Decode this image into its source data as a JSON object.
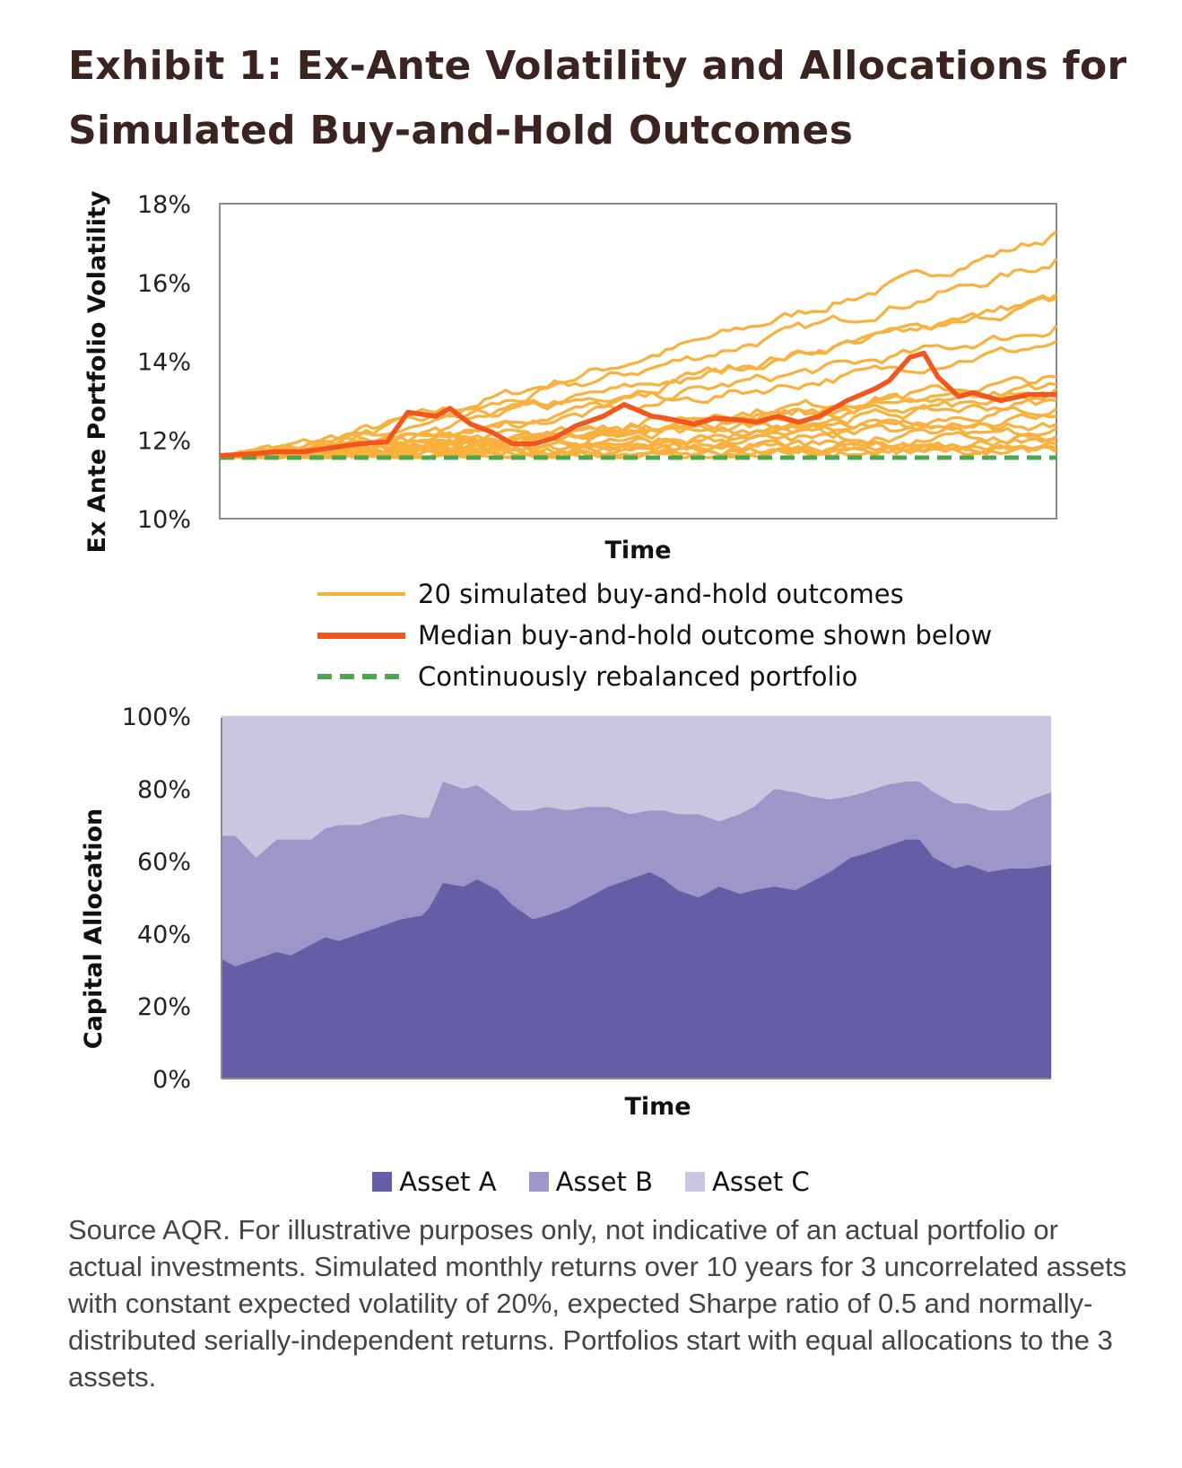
{
  "title_line1": "Exhibit 1: Ex-Ante Volatility and Allocations for",
  "title_line2": "Simulated Buy-and-Hold Outcomes",
  "source_text": "Source AQR. For illustrative purposes only, not indicative of an actual portfolio or actual investments. Simulated monthly returns over 10 years for 3 uncorrelated assets with constant expected volatility of 20%, expected Sharpe ratio of 0.5 and normally-distributed serially-independent returns. Portfolios start with equal allocations to the 3 assets.",
  "chart_data": [
    {
      "type": "line",
      "xlabel": "Time",
      "ylabel": "Ex Ante Portfolio Volatility",
      "ylim": [
        10,
        18
      ],
      "yticks": [
        "10%",
        "12%",
        "14%",
        "16%",
        "18%"
      ],
      "grid": false,
      "legend_position": "below",
      "x_months": 120,
      "colors": {
        "simulated": "#f9b03c",
        "median": "#f2561d",
        "rebalanced": "#4aa84a"
      },
      "simulated_count": 20,
      "simulated_end_values_approx": [
        17.3,
        16.6,
        15.7,
        15.6,
        14.9,
        14.5,
        13.6,
        13.4,
        13.3,
        13.1,
        13.0,
        12.8,
        12.6,
        12.4,
        12.3,
        12.1,
        12.0,
        11.9,
        11.8,
        11.7
      ],
      "series": [
        {
          "name": "Median buy-and-hold outcome shown below",
          "style": "solid-thick",
          "points": [
            [
              0,
              11.6
            ],
            [
              5,
              11.65
            ],
            [
              8,
              11.7
            ],
            [
              12,
              11.7
            ],
            [
              16,
              11.8
            ],
            [
              20,
              11.9
            ],
            [
              24,
              11.95
            ],
            [
              27,
              12.7
            ],
            [
              31,
              12.6
            ],
            [
              33,
              12.8
            ],
            [
              36,
              12.4
            ],
            [
              39,
              12.2
            ],
            [
              42,
              11.9
            ],
            [
              45,
              11.9
            ],
            [
              48,
              12.05
            ],
            [
              51,
              12.35
            ],
            [
              55,
              12.6
            ],
            [
              58,
              12.9
            ],
            [
              62,
              12.6
            ],
            [
              64,
              12.55
            ],
            [
              68,
              12.4
            ],
            [
              71,
              12.55
            ],
            [
              75,
              12.5
            ],
            [
              77,
              12.45
            ],
            [
              80,
              12.6
            ],
            [
              83,
              12.45
            ],
            [
              86,
              12.6
            ],
            [
              90,
              13.0
            ],
            [
              94,
              13.3
            ],
            [
              96,
              13.5
            ],
            [
              99,
              14.1
            ],
            [
              101,
              14.2
            ],
            [
              103,
              13.6
            ],
            [
              106,
              13.1
            ],
            [
              108,
              13.2
            ],
            [
              112,
              13.0
            ],
            [
              116,
              13.15
            ],
            [
              120,
              13.15
            ]
          ]
        },
        {
          "name": "Continuously rebalanced portfolio",
          "style": "dashed",
          "points": [
            [
              0,
              11.55
            ],
            [
              120,
              11.55
            ]
          ]
        }
      ],
      "legend": [
        {
          "label": "20 simulated buy-and-hold outcomes",
          "key": "simulated"
        },
        {
          "label": "Median buy-and-hold outcome shown below",
          "key": "median"
        },
        {
          "label": "Continuously rebalanced portfolio",
          "key": "rebalanced"
        }
      ]
    },
    {
      "type": "area",
      "stacked": true,
      "xlabel": "Time",
      "ylabel": "Capital  Allocation",
      "ylim": [
        0,
        100
      ],
      "yticks": [
        "0%",
        "20%",
        "40%",
        "60%",
        "80%",
        "100%"
      ],
      "grid": false,
      "legend_position": "bottom",
      "x_months": 120,
      "series": [
        {
          "name": "Asset A",
          "color": "#655ea6",
          "points": [
            [
              0,
              33
            ],
            [
              2,
              31
            ],
            [
              5,
              33
            ],
            [
              8,
              35
            ],
            [
              10,
              34
            ],
            [
              13,
              37
            ],
            [
              15,
              39
            ],
            [
              17,
              38
            ],
            [
              20,
              40
            ],
            [
              23,
              42
            ],
            [
              26,
              44
            ],
            [
              29,
              45
            ],
            [
              30,
              47
            ],
            [
              32,
              54
            ],
            [
              35,
              53
            ],
            [
              37,
              55
            ],
            [
              40,
              52
            ],
            [
              42,
              48
            ],
            [
              45,
              44
            ],
            [
              47,
              45
            ],
            [
              50,
              47
            ],
            [
              53,
              50
            ],
            [
              56,
              53
            ],
            [
              59,
              55
            ],
            [
              62,
              57
            ],
            [
              64,
              55
            ],
            [
              66,
              52
            ],
            [
              69,
              50
            ],
            [
              72,
              53
            ],
            [
              75,
              51
            ],
            [
              77,
              52
            ],
            [
              80,
              53
            ],
            [
              83,
              52
            ],
            [
              85,
              54
            ],
            [
              88,
              57
            ],
            [
              91,
              61
            ],
            [
              93,
              62
            ],
            [
              96,
              64
            ],
            [
              99,
              66
            ],
            [
              101,
              66
            ],
            [
              103,
              61
            ],
            [
              106,
              58
            ],
            [
              108,
              59
            ],
            [
              111,
              57
            ],
            [
              114,
              58
            ],
            [
              117,
              58
            ],
            [
              120,
              59
            ]
          ]
        },
        {
          "name": "Asset B",
          "color": "#9c97c8",
          "points": [
            [
              0,
              34
            ],
            [
              2,
              36
            ],
            [
              5,
              28
            ],
            [
              8,
              31
            ],
            [
              10,
              32
            ],
            [
              13,
              29
            ],
            [
              15,
              30
            ],
            [
              17,
              32
            ],
            [
              20,
              30
            ],
            [
              23,
              30
            ],
            [
              26,
              29
            ],
            [
              29,
              27
            ],
            [
              30,
              25
            ],
            [
              32,
              28
            ],
            [
              35,
              27
            ],
            [
              37,
              26
            ],
            [
              40,
              25
            ],
            [
              42,
              26
            ],
            [
              45,
              30
            ],
            [
              47,
              30
            ],
            [
              50,
              27
            ],
            [
              53,
              25
            ],
            [
              56,
              22
            ],
            [
              59,
              18
            ],
            [
              62,
              17
            ],
            [
              64,
              19
            ],
            [
              66,
              21
            ],
            [
              69,
              23
            ],
            [
              72,
              18
            ],
            [
              75,
              22
            ],
            [
              77,
              23
            ],
            [
              80,
              27
            ],
            [
              83,
              27
            ],
            [
              85,
              24
            ],
            [
              88,
              20
            ],
            [
              91,
              17
            ],
            [
              93,
              17
            ],
            [
              96,
              17
            ],
            [
              99,
              16
            ],
            [
              101,
              16
            ],
            [
              103,
              18
            ],
            [
              106,
              18
            ],
            [
              108,
              17
            ],
            [
              111,
              17
            ],
            [
              114,
              16
            ],
            [
              117,
              19
            ],
            [
              120,
              20
            ]
          ]
        },
        {
          "name": "Asset C",
          "color": "#c9c6e0",
          "points": [
            [
              0,
              33
            ],
            [
              2,
              33
            ],
            [
              5,
              39
            ],
            [
              8,
              34
            ],
            [
              10,
              34
            ],
            [
              13,
              34
            ],
            [
              15,
              31
            ],
            [
              17,
              30
            ],
            [
              20,
              30
            ],
            [
              23,
              28
            ],
            [
              26,
              27
            ],
            [
              29,
              28
            ],
            [
              30,
              28
            ],
            [
              32,
              18
            ],
            [
              35,
              20
            ],
            [
              37,
              19
            ],
            [
              40,
              23
            ],
            [
              42,
              26
            ],
            [
              45,
              26
            ],
            [
              47,
              25
            ],
            [
              50,
              26
            ],
            [
              53,
              25
            ],
            [
              56,
              25
            ],
            [
              59,
              27
            ],
            [
              62,
              26
            ],
            [
              64,
              26
            ],
            [
              66,
              27
            ],
            [
              69,
              27
            ],
            [
              72,
              29
            ],
            [
              75,
              27
            ],
            [
              77,
              25
            ],
            [
              80,
              20
            ],
            [
              83,
              21
            ],
            [
              85,
              22
            ],
            [
              88,
              23
            ],
            [
              91,
              22
            ],
            [
              93,
              21
            ],
            [
              96,
              19
            ],
            [
              99,
              18
            ],
            [
              101,
              18
            ],
            [
              103,
              21
            ],
            [
              106,
              24
            ],
            [
              108,
              24
            ],
            [
              111,
              26
            ],
            [
              114,
              26
            ],
            [
              117,
              23
            ],
            [
              120,
              21
            ]
          ]
        }
      ]
    }
  ]
}
